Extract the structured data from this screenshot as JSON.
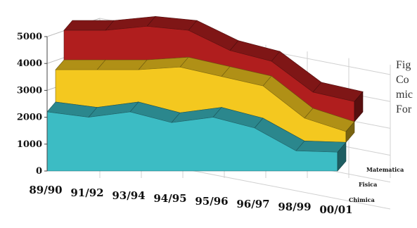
{
  "chart_data": {
    "type": "area",
    "title": "",
    "xlabel": "",
    "ylabel": "",
    "ylim": [
      0,
      5000
    ],
    "stacked": true,
    "view": "3d",
    "grid": true,
    "legend": "none",
    "categories": [
      "89/90",
      "91/92",
      "93/94",
      "94/95",
      "95/96",
      "96/97",
      "98/99",
      "00/01"
    ],
    "y_ticks": [
      "0",
      "1000",
      "2000",
      "3000",
      "4000",
      "5000"
    ],
    "series": [
      {
        "name": "Chimica",
        "values": [
          2200,
          2000,
          2200,
          1800,
          2000,
          1600,
          750,
          700
        ],
        "color": "#3cbcc4"
      },
      {
        "name": "Fisica",
        "values": [
          1200,
          1400,
          1200,
          1700,
          1150,
          1200,
          850,
          400
        ],
        "color": "#f4c81f"
      },
      {
        "name": "Matematica",
        "values": [
          1100,
          1100,
          1250,
          1000,
          600,
          550,
          600,
          750
        ],
        "color": "#b01e1e"
      }
    ]
  },
  "caption": {
    "lines": [
      "Fig",
      "Co",
      "mic",
      "For"
    ]
  }
}
